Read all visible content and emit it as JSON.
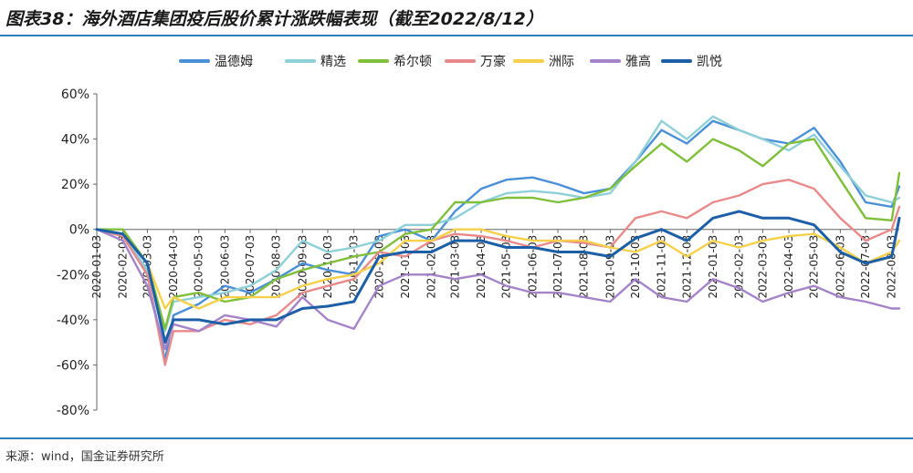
{
  "header": {
    "title": "图表38：海外酒店集团疫后股价累计涨跌幅表现（截至2022/8/12）"
  },
  "footer": {
    "source": "来源：wind，国金证券研究所"
  },
  "chart_data": {
    "type": "line",
    "title": "图表38：海外酒店集团疫后股价累计涨跌幅表现（截至2022/8/12）",
    "xlabel": "",
    "ylabel": "",
    "ylim": [
      -80,
      60
    ],
    "y_ticks": [
      -80,
      -60,
      -40,
      -20,
      0,
      20,
      40,
      60
    ],
    "y_tick_labels": [
      "-80%",
      "-60%",
      "-40%",
      "-20%",
      "0%",
      "20%",
      "40%",
      "60%"
    ],
    "y_unit": "%",
    "x_tick_labels": [
      "2020-01-03",
      "2020-02-03",
      "2020-03-03",
      "2020-04-03",
      "2020-05-03",
      "2020-06-03",
      "2020-07-03",
      "2020-08-03",
      "2020-09-03",
      "2020-10-03",
      "2020-11-03",
      "2020-12-03",
      "2021-01-03",
      "2021-02-03",
      "2021-03-03",
      "2021-04-03",
      "2021-05-03",
      "2021-06-03",
      "2021-07-03",
      "2021-08-03",
      "2021-09-03",
      "2021-10-03",
      "2021-11-03",
      "2021-12-03",
      "2022-01-03",
      "2022-02-03",
      "2022-03-03",
      "2022-04-03",
      "2022-05-03",
      "2022-06-03",
      "2022-07-03",
      "2022-08-03"
    ],
    "grid": false,
    "legend_position": "top",
    "x": [
      "2020-01-03",
      "2020-02-03",
      "2020-03-03",
      "2020-03-24",
      "2020-04-03",
      "2020-05-03",
      "2020-06-03",
      "2020-07-03",
      "2020-08-03",
      "2020-09-03",
      "2020-10-03",
      "2020-11-03",
      "2020-12-03",
      "2021-01-03",
      "2021-02-03",
      "2021-03-03",
      "2021-04-03",
      "2021-05-03",
      "2021-06-03",
      "2021-07-03",
      "2021-08-03",
      "2021-09-03",
      "2021-10-03",
      "2021-11-03",
      "2021-12-03",
      "2022-01-03",
      "2022-02-03",
      "2022-03-03",
      "2022-04-03",
      "2022-05-03",
      "2022-06-03",
      "2022-07-03",
      "2022-08-03",
      "2022-08-12"
    ],
    "series": [
      {
        "name": "温德姆",
        "color": "#4a90d9",
        "values": [
          0,
          -3,
          -20,
          -58,
          -38,
          -33,
          -25,
          -28,
          -22,
          -15,
          -18,
          -20,
          -3,
          0,
          -5,
          8,
          18,
          22,
          23,
          20,
          16,
          18,
          30,
          44,
          38,
          48,
          44,
          40,
          38,
          45,
          30,
          12,
          10,
          19
        ]
      },
      {
        "name": "精选",
        "color": "#8fd0d8",
        "values": [
          0,
          -2,
          -18,
          -45,
          -32,
          -30,
          -28,
          -25,
          -18,
          -5,
          -10,
          -8,
          -5,
          2,
          2,
          5,
          12,
          16,
          17,
          16,
          14,
          16,
          30,
          48,
          40,
          50,
          44,
          40,
          35,
          42,
          28,
          15,
          12,
          14
        ]
      },
      {
        "name": "希尔顿",
        "color": "#7fbf3a",
        "values": [
          0,
          0,
          -15,
          -44,
          -30,
          -28,
          -32,
          -30,
          -22,
          -18,
          -15,
          -12,
          -10,
          -2,
          0,
          12,
          12,
          14,
          14,
          12,
          14,
          18,
          28,
          38,
          30,
          40,
          35,
          28,
          38,
          40,
          22,
          5,
          4,
          25
        ]
      },
      {
        "name": "万豪",
        "color": "#e98a8a",
        "values": [
          0,
          -3,
          -20,
          -60,
          -45,
          -45,
          -40,
          -42,
          -38,
          -28,
          -25,
          -22,
          -10,
          -12,
          -5,
          -2,
          -3,
          -5,
          -8,
          -5,
          -6,
          -8,
          5,
          8,
          5,
          12,
          15,
          20,
          22,
          18,
          5,
          -5,
          0,
          10
        ]
      },
      {
        "name": "洲际",
        "color": "#f5d04a",
        "values": [
          0,
          -2,
          -15,
          -35,
          -30,
          -35,
          -30,
          -30,
          -30,
          -25,
          -22,
          -20,
          -15,
          -5,
          -5,
          0,
          0,
          -3,
          -5,
          -5,
          -5,
          -8,
          -10,
          -5,
          -12,
          -5,
          -8,
          -5,
          -3,
          -2,
          -8,
          -15,
          -10,
          -5
        ]
      },
      {
        "name": "雅高",
        "color": "#a483c9",
        "values": [
          0,
          -5,
          -25,
          -53,
          -42,
          -45,
          -38,
          -40,
          -43,
          -30,
          -40,
          -44,
          -25,
          -20,
          -20,
          -22,
          -20,
          -25,
          -28,
          -28,
          -30,
          -32,
          -22,
          -30,
          -32,
          -22,
          -26,
          -32,
          -28,
          -25,
          -30,
          -32,
          -35,
          -35
        ]
      },
      {
        "name": "凯悦",
        "color": "#1c5fa6",
        "values": [
          0,
          -2,
          -15,
          -50,
          -40,
          -40,
          -42,
          -40,
          -40,
          -35,
          -34,
          -32,
          -12,
          -10,
          -10,
          -5,
          -5,
          -8,
          -8,
          -10,
          -10,
          -12,
          -4,
          0,
          -5,
          5,
          8,
          5,
          5,
          2,
          -10,
          -15,
          -12,
          5
        ]
      }
    ]
  }
}
